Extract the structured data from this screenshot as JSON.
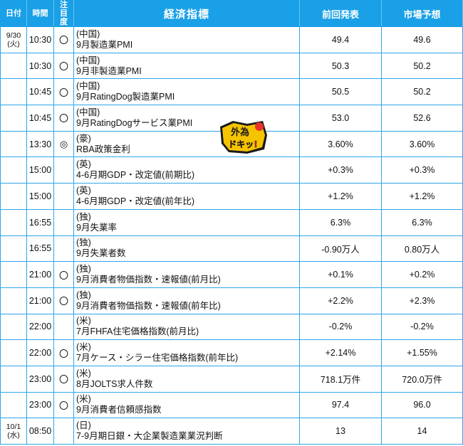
{
  "header": {
    "date": "日付",
    "time": "時間",
    "attention": "注目度",
    "indicator": "経済指標",
    "previous": "前回発表",
    "forecast": "市場予想"
  },
  "badge": {
    "line1": "外為",
    "line2": "ドキッ!"
  },
  "rows": [
    {
      "date": "9/30",
      "weekday": "(火)",
      "time": "10:30",
      "attn": "〇",
      "country": "(中国)",
      "name": "9月製造業PMI",
      "prev": "49.4",
      "fcst": "49.6"
    },
    {
      "date": "",
      "weekday": "",
      "time": "10:30",
      "attn": "〇",
      "country": "(中国)",
      "name": "9月非製造業PMI",
      "prev": "50.3",
      "fcst": "50.2"
    },
    {
      "date": "",
      "weekday": "",
      "time": "10:45",
      "attn": "〇",
      "country": "(中国)",
      "name": "9月RatingDog製造業PMI",
      "prev": "50.5",
      "fcst": "50.2"
    },
    {
      "date": "",
      "weekday": "",
      "time": "10:45",
      "attn": "〇",
      "country": "(中国)",
      "name": "9月RatingDogサービス業PMI",
      "prev": "53.0",
      "fcst": "52.6"
    },
    {
      "date": "",
      "weekday": "",
      "time": "13:30",
      "attn": "◎",
      "country": "(豪)",
      "name": "RBA政策金利",
      "prev": "3.60%",
      "fcst": "3.60%"
    },
    {
      "date": "",
      "weekday": "",
      "time": "15:00",
      "attn": "",
      "country": "(英)",
      "name": "4-6月期GDP・改定値(前期比)",
      "prev": "+0.3%",
      "fcst": "+0.3%"
    },
    {
      "date": "",
      "weekday": "",
      "time": "15:00",
      "attn": "",
      "country": "(英)",
      "name": "4-6月期GDP・改定値(前年比)",
      "prev": "+1.2%",
      "fcst": "+1.2%"
    },
    {
      "date": "",
      "weekday": "",
      "time": "16:55",
      "attn": "",
      "country": "(独)",
      "name": "9月失業率",
      "prev": "6.3%",
      "fcst": "6.3%"
    },
    {
      "date": "",
      "weekday": "",
      "time": "16:55",
      "attn": "",
      "country": "(独)",
      "name": "9月失業者数",
      "prev": "-0.90万人",
      "fcst": "0.80万人"
    },
    {
      "date": "",
      "weekday": "",
      "time": "21:00",
      "attn": "〇",
      "country": "(独)",
      "name": "9月消費者物価指数・速報値(前月比)",
      "prev": "+0.1%",
      "fcst": "+0.2%"
    },
    {
      "date": "",
      "weekday": "",
      "time": "21:00",
      "attn": "〇",
      "country": "(独)",
      "name": "9月消費者物価指数・速報値(前年比)",
      "prev": "+2.2%",
      "fcst": "+2.3%"
    },
    {
      "date": "",
      "weekday": "",
      "time": "22:00",
      "attn": "",
      "country": "(米)",
      "name": "7月FHFA住宅価格指数(前月比)",
      "prev": "-0.2%",
      "fcst": "-0.2%"
    },
    {
      "date": "",
      "weekday": "",
      "time": "22:00",
      "attn": "〇",
      "country": "(米)",
      "name": "7月ケース・シラー住宅価格指数(前年比)",
      "prev": "+2.14%",
      "fcst": "+1.55%"
    },
    {
      "date": "",
      "weekday": "",
      "time": "23:00",
      "attn": "〇",
      "country": "(米)",
      "name": "8月JOLTS求人件数",
      "prev": "718.1万件",
      "fcst": "720.0万件"
    },
    {
      "date": "",
      "weekday": "",
      "time": "23:00",
      "attn": "〇",
      "country": "(米)",
      "name": "9月消費者信頼感指数",
      "prev": "97.4",
      "fcst": "96.0"
    },
    {
      "date": "10/1",
      "weekday": "(水)",
      "time": "08:50",
      "attn": "",
      "country": "(日)",
      "name": "7-9月期日銀・大企業製造業業況判断",
      "prev": "13",
      "fcst": "14"
    }
  ]
}
